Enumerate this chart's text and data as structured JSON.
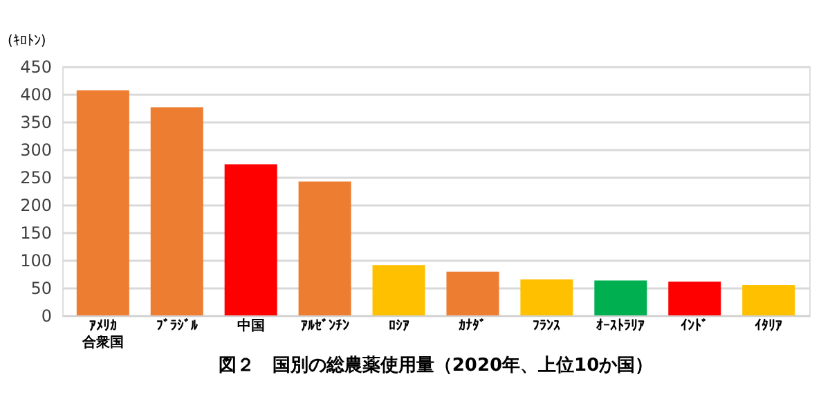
{
  "chart_data": {
    "type": "bar",
    "title": "図２　国別の総農薬使用量（2020年、上位10か国）",
    "ylabel": "(ｷﾛﾄﾝ)",
    "categories": [
      "ｱﾒﾘｶ合衆国",
      "ﾌﾞﾗｼﾞﾙ",
      "中国",
      "ｱﾙｾﾞﾝﾁﾝ",
      "ﾛｼｱ",
      "ｶﾅﾀﾞ",
      "ﾌﾗﾝｽ",
      "ｵｰｽﾄﾗﾘｱ",
      "ｲﾝﾄﾞ",
      "ｲﾀﾘｱ"
    ],
    "values": [
      407,
      376,
      273,
      242,
      91,
      79,
      65,
      63,
      61,
      55
    ],
    "colors": [
      "#ed7d31",
      "#ed7d31",
      "#ff0000",
      "#ed7d31",
      "#ffc000",
      "#ed7d31",
      "#ffc000",
      "#00b050",
      "#ff0000",
      "#ffc000"
    ],
    "ylim": [
      0,
      450
    ],
    "yticks": [
      0,
      50,
      100,
      150,
      200,
      250,
      300,
      350,
      400,
      450
    ],
    "grid": "y"
  }
}
